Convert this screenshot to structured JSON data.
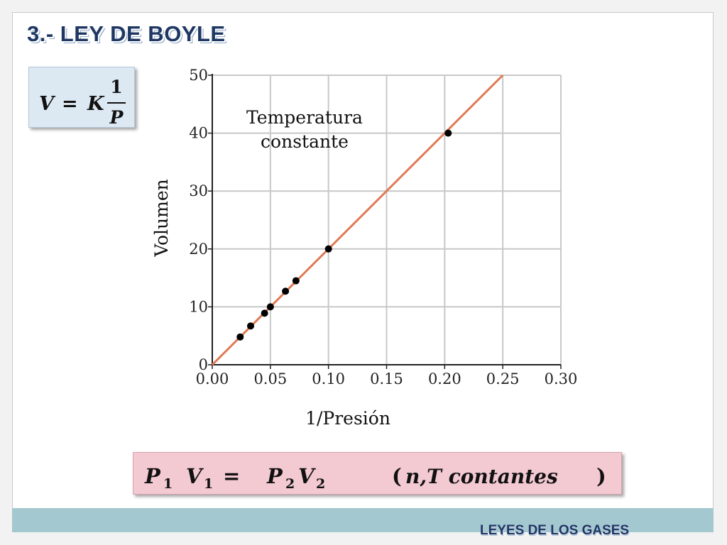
{
  "slide": {
    "title": "3.- LEY DE BOYLE",
    "footer": "LEYES DE LOS GASES"
  },
  "formula_v": {
    "lhs": "V",
    "equals": "=",
    "const": "K",
    "numerator": "1",
    "denominator": "P"
  },
  "formula_boyle": {
    "p1": "P",
    "p1_sub": "1",
    "v1": "V",
    "v1_sub": "1",
    "equals": "=",
    "p2": "P",
    "p2_sub": "2",
    "v2": "V",
    "v2_sub": "2",
    "condition_open": "(",
    "condition": "n,T contantes",
    "condition_close": ")"
  },
  "colors": {
    "line": "#e07a55",
    "points": "#000000",
    "grid": "#c8c8c8",
    "title": "#1f3763",
    "band": "#a3c8d0"
  },
  "chart_data": {
    "type": "scatter",
    "xlabel": "1/Presión",
    "ylabel": "Volumen",
    "annotation": [
      "Temperatura",
      "constante"
    ],
    "xlim": [
      0,
      0.3
    ],
    "ylim": [
      0,
      50
    ],
    "x_ticks": [
      0.0,
      0.05,
      0.1,
      0.15,
      0.2,
      0.25,
      0.3
    ],
    "x_tick_labels": [
      "0.00",
      "0.05",
      "0.10",
      "0.15",
      "0.20",
      "0.25",
      "0.30"
    ],
    "y_ticks": [
      0,
      10,
      20,
      30,
      40,
      50
    ],
    "y_tick_labels": [
      "0",
      "10",
      "20",
      "30",
      "40",
      "50"
    ],
    "grid": true,
    "series": [
      {
        "type": "scatter",
        "x": [
          0.024,
          0.033,
          0.045,
          0.05,
          0.063,
          0.072,
          0.1,
          0.203
        ],
        "y": [
          4.8,
          6.7,
          8.9,
          10.0,
          12.7,
          14.5,
          20.0,
          40.0
        ]
      },
      {
        "type": "line",
        "x": [
          0.0,
          0.25
        ],
        "y": [
          0.0,
          50.0
        ]
      }
    ]
  }
}
